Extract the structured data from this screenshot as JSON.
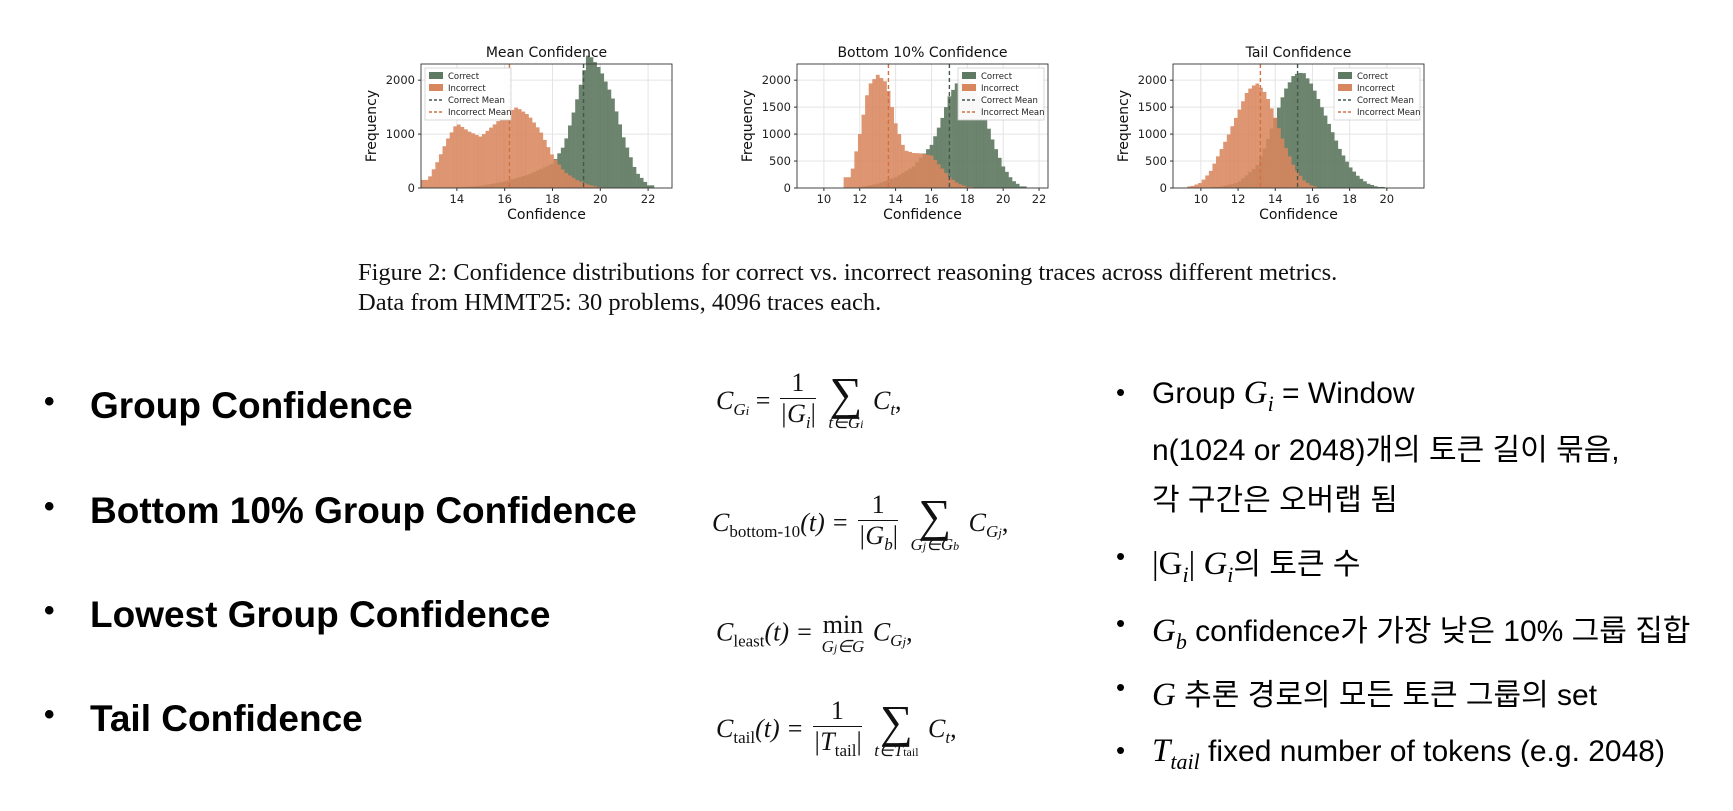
{
  "chart_data": [
    {
      "type": "bar",
      "title": "Mean Confidence",
      "xlabel": "Confidence",
      "ylabel": "Frequency",
      "xlim": [
        12.5,
        23
      ],
      "ylim": [
        0,
        2300
      ],
      "xticks": [
        14,
        16,
        18,
        20,
        22
      ],
      "yticks": [
        0,
        1000,
        2000
      ],
      "legend": [
        "Correct",
        "Incorrect",
        "Correct Mean",
        "Incorrect Mean"
      ],
      "legend_position": "upper-left",
      "grid": true,
      "series": [
        {
          "name": "Correct",
          "color": "#5f7a62",
          "x": [
            13,
            14,
            15,
            16,
            17,
            18,
            18.5,
            19,
            19.5,
            20,
            20.5,
            21,
            21.5,
            22
          ],
          "values": [
            0,
            10,
            40,
            120,
            250,
            450,
            800,
            1600,
            2500,
            2200,
            1700,
            900,
            300,
            50
          ]
        },
        {
          "name": "Incorrect",
          "color": "#d8865e",
          "x": [
            12.8,
            13.2,
            13.6,
            14,
            14.5,
            15,
            15.5,
            16,
            16.5,
            17,
            17.5,
            18,
            18.5,
            19,
            19.5,
            20
          ],
          "values": [
            150,
            500,
            900,
            1200,
            1050,
            950,
            1150,
            1350,
            1500,
            1350,
            1050,
            600,
            300,
            150,
            60,
            10
          ]
        }
      ],
      "means": {
        "Correct": 19.3,
        "Incorrect": 16.2
      }
    },
    {
      "type": "bar",
      "title": "Bottom 10% Confidence",
      "xlabel": "Confidence",
      "ylabel": "Frequency",
      "xlim": [
        8.5,
        22.5
      ],
      "ylim": [
        0,
        2300
      ],
      "xticks": [
        10,
        12,
        14,
        16,
        18,
        20,
        22
      ],
      "yticks": [
        0,
        500,
        1000,
        1500,
        2000
      ],
      "legend": [
        "Correct",
        "Incorrect",
        "Correct Mean",
        "Incorrect Mean"
      ],
      "legend_position": "upper-right",
      "grid": true,
      "series": [
        {
          "name": "Correct",
          "color": "#5f7a62",
          "x": [
            12,
            13,
            14,
            15,
            16,
            16.5,
            17,
            17.5,
            18,
            18.5,
            19,
            19.5,
            20,
            20.5,
            21
          ],
          "values": [
            10,
            80,
            200,
            400,
            800,
            1200,
            1700,
            2000,
            2100,
            1800,
            1300,
            800,
            400,
            150,
            30
          ]
        },
        {
          "name": "Incorrect",
          "color": "#d8865e",
          "x": [
            11.5,
            12,
            12.5,
            13,
            13.5,
            14,
            14.5,
            15,
            15.5,
            16,
            16.5,
            17,
            17.5,
            18
          ],
          "values": [
            200,
            1000,
            1900,
            2100,
            1950,
            1200,
            700,
            650,
            640,
            600,
            400,
            200,
            80,
            20
          ]
        }
      ],
      "means": {
        "Correct": 17.0,
        "Incorrect": 13.6
      }
    },
    {
      "type": "bar",
      "title": "Tail Confidence",
      "xlabel": "Confidence",
      "ylabel": "Frequency",
      "xlim": [
        8.5,
        22
      ],
      "ylim": [
        0,
        2300
      ],
      "xticks": [
        10,
        12,
        14,
        16,
        18,
        20
      ],
      "yticks": [
        0,
        500,
        1000,
        1500,
        2000
      ],
      "legend": [
        "Correct",
        "Incorrect",
        "Correct Mean",
        "Incorrect Mean"
      ],
      "legend_position": "upper-right",
      "grid": true,
      "series": [
        {
          "name": "Correct",
          "color": "#5f7a62",
          "x": [
            11,
            12,
            13,
            13.5,
            14,
            14.5,
            15,
            15.5,
            16,
            16.5,
            17,
            17.5,
            18,
            18.5,
            19,
            19.5
          ],
          "values": [
            20,
            100,
            400,
            800,
            1300,
            1800,
            2100,
            2150,
            1900,
            1500,
            1100,
            700,
            400,
            200,
            80,
            20
          ]
        },
        {
          "name": "Incorrect",
          "color": "#d8865e",
          "x": [
            9.5,
            10,
            10.5,
            11,
            11.5,
            12,
            12.5,
            13,
            13.5,
            14,
            14.5,
            15,
            15.5,
            16
          ],
          "values": [
            30,
            100,
            300,
            650,
            1000,
            1400,
            1800,
            1950,
            1750,
            1300,
            800,
            400,
            150,
            30
          ]
        }
      ],
      "means": {
        "Correct": 15.2,
        "Incorrect": 13.2
      }
    }
  ],
  "caption": {
    "line1": "Figure 2: Confidence distributions for correct vs. incorrect reasoning traces across different metrics.",
    "line2": "Data from HMMT25: 30 problems, 4096 traces each."
  },
  "bullets_left": [
    {
      "label": "Group Confidence"
    },
    {
      "label": "Bottom 10% Group Confidence"
    },
    {
      "label": "Lowest Group Confidence"
    },
    {
      "label": "Tail Confidence"
    }
  ],
  "formulas": {
    "group": {
      "lhs": "C",
      "lhs_sub": "G",
      "lhs_subsub": "i",
      "num": "1",
      "den": "|G",
      "den_sub": "i",
      "den_end": "|",
      "sum_lim": "t∈G",
      "sum_lim_sub": "i",
      "term": "C",
      "term_sub": "t",
      "tail": ","
    },
    "bottom": {
      "lhs": "C",
      "lhs_sub": "bottom-10",
      "arg": "(t) =",
      "num": "1",
      "den": "|G",
      "den_sub": "b",
      "den_end": "|",
      "sum_lim": "G",
      "sum_lim_sub": "j",
      "sum_lim_end": "∈G",
      "sum_lim_end_sub": "b",
      "term": "C",
      "term_sub": "G",
      "term_subsub": "j",
      "tail": ","
    },
    "least": {
      "lhs": "C",
      "lhs_sub": "least",
      "arg": "(t) =",
      "op": "min",
      "op_lim": "G",
      "op_lim_sub": "j",
      "op_lim_end": "∈G",
      "term": "C",
      "term_sub": "G",
      "term_subsub": "j",
      "tail": ","
    },
    "tail": {
      "lhs": "C",
      "lhs_sub": "tail",
      "arg": "(t) =",
      "num": "1",
      "den": "|T",
      "den_sub": "tail",
      "den_end": "|",
      "sum_lim": "t∈T",
      "sum_lim_sub": "tail",
      "term": "C",
      "term_sub": "t",
      "tail": ","
    }
  },
  "bullets_right": {
    "b1": {
      "pre": "Group ",
      "math": "G",
      "msub": "i",
      "post": " = Window",
      "line2": "n(1024 or 2048)개의 토큰 길이 묶음,",
      "line3": "각 구간은 오버랩 됨"
    },
    "b2": {
      "math1": "|G",
      "msub1": "i",
      "math_end": "| ",
      "math2": "G",
      "msub2": "i",
      "post": "의 토큰 수"
    },
    "b3": {
      "math": "G",
      "msub": "b",
      "post": " confidence가 가장 낮은 10% 그룹 집합"
    },
    "b4": {
      "math": "G",
      "post": " 추론 경로의 모든 토큰 그룹의 set"
    },
    "b5": {
      "math": "T",
      "msub": "tail",
      "post": " fixed number of tokens (e.g. 2048)"
    }
  }
}
